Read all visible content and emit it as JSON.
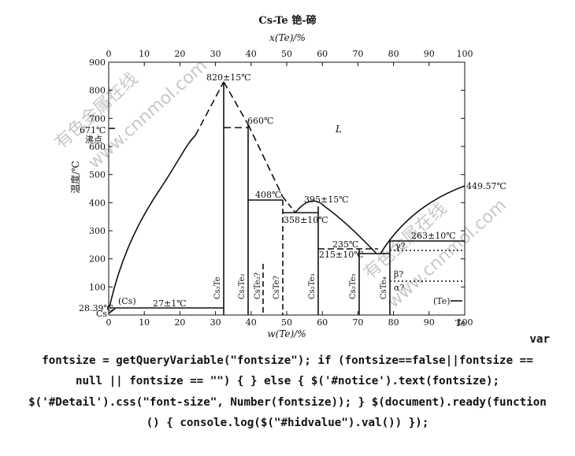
{
  "title": "Cs-Te  铯-碲",
  "axes": {
    "top_label": "x(Te)/%",
    "bottom_label": "w(Te)/%",
    "y_label": "温度/℃",
    "left_element": "Cs",
    "right_element": "Te",
    "x_ticks": [
      "0",
      "10",
      "20",
      "30",
      "40",
      "50",
      "60",
      "70",
      "80",
      "90",
      "100"
    ],
    "top_ticks": [
      "0",
      "10",
      "20",
      "30",
      "40",
      "50",
      "60",
      "70",
      "80",
      "90",
      "100"
    ],
    "y_ticks": [
      "0",
      "100",
      "200",
      "300",
      "400",
      "500",
      "600",
      "700",
      "800",
      "900"
    ]
  },
  "annotations": {
    "bp_temp": "671℃",
    "bp_label": "沸点",
    "cs_melt": "28.39℃",
    "cs_phase": "(Cs)",
    "te_phase": "(Te)",
    "liquid": "L",
    "eut1": "27±1℃",
    "max1": "820±15℃",
    "p660": "660℃",
    "p408": "408℃",
    "p358": "358±10℃",
    "p395": "395±15℃",
    "p235": "235℃",
    "p215": "215±10℃",
    "p263": "263±10℃",
    "te_melt": "449.57℃",
    "gamma": "γ?",
    "beta": "β?",
    "alpha": "α?"
  },
  "compounds": [
    {
      "id": "cs2te",
      "label": "Cs₂Te",
      "w": 33
    },
    {
      "id": "cs3te2",
      "label": "Cs₃Te₂",
      "w": 40
    },
    {
      "id": "cs2te2",
      "label": "CsTe₂?",
      "w": 44
    },
    {
      "id": "cste",
      "label": "CsTe?",
      "w": 50
    },
    {
      "id": "cs2te3",
      "label": "Cs₂Te₃",
      "w": 59
    },
    {
      "id": "cs2te5",
      "label": "Cs₂Te₅",
      "w": 70
    },
    {
      "id": "cste4",
      "label": "CsTe₄",
      "w": 79
    }
  ],
  "watermark": [
    "有色金属在线",
    "www.cnnmol.com"
  ],
  "code_lines": [
    "var",
    "fontsize = getQueryVariable(\"fontsize\"); if (fontsize==false||fontsize ==",
    "null || fontsize == \"\") { } else { $('#notice').text(fontsize);",
    "$('#Detail').css(\"font-size\", Number(fontsize)); } $(document).ready(function",
    "() { console.log($(\"#hidvalue\").val()) });"
  ]
}
